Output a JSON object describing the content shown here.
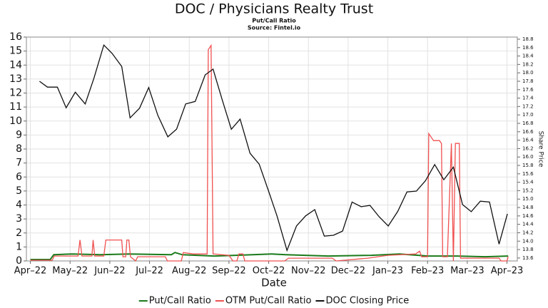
{
  "chart_data": {
    "type": "line",
    "title": "DOC / Physicians Realty Trust",
    "subtitle": "Put/Call Ratio",
    "source": "Source: Fintel.io",
    "xlabel": "Date",
    "y2label": "Share Price",
    "grid": true,
    "legend": "bottom",
    "xlim": [
      -0.1,
      12.26
    ],
    "xticks": [
      {
        "value": 0,
        "label": "Apr–22"
      },
      {
        "value": 1,
        "label": "May–22"
      },
      {
        "value": 2,
        "label": "Jun–22"
      },
      {
        "value": 3,
        "label": "Jul–22"
      },
      {
        "value": 4,
        "label": "Aug–22"
      },
      {
        "value": 5,
        "label": "Sep–22"
      },
      {
        "value": 6,
        "label": "Oct–22"
      },
      {
        "value": 7,
        "label": "Nov–22"
      },
      {
        "value": 8,
        "label": "Dec–22"
      },
      {
        "value": 9,
        "label": "Jan–23"
      },
      {
        "value": 10,
        "label": "Feb–23"
      },
      {
        "value": 11,
        "label": "Mar–23"
      },
      {
        "value": 12,
        "label": "Apr–23"
      }
    ],
    "ylim": [
      0,
      16
    ],
    "yticks": [
      0,
      1,
      2,
      3,
      4,
      5,
      6,
      7,
      8,
      9,
      10,
      11,
      12,
      13,
      14,
      15,
      16
    ],
    "y2lim": [
      13.53,
      18.85
    ],
    "y2ticks": [
      13.6,
      13.8,
      {
        "value": 14,
        "label": "14.0"
      },
      14.2,
      14.4,
      14.6,
      14.8,
      {
        "value": 15,
        "label": "15.0"
      },
      15.2,
      15.4,
      15.6,
      15.8,
      {
        "value": 16,
        "label": "16.0"
      },
      16.2,
      16.4,
      16.6,
      16.8,
      {
        "value": 17,
        "label": "17.0"
      },
      17.2,
      17.4,
      17.6,
      17.8,
      {
        "value": 18,
        "label": "18.0"
      },
      18.2,
      18.4,
      18.6,
      18.8
    ],
    "series": [
      {
        "name": "Put/Call Ratio",
        "color": "#1a7a1a",
        "axis": "y",
        "x": [
          0,
          0.5,
          0.59,
          1.04,
          1.76,
          2.48,
          3.55,
          3.64,
          3.82,
          4.63,
          5.17,
          6.07,
          6.43,
          7.5,
          8.58,
          9.3,
          10.02,
          10.74,
          11.45,
          12.03
        ],
        "values": [
          0.1,
          0.1,
          0.45,
          0.5,
          0.45,
          0.5,
          0.45,
          0.6,
          0.45,
          0.35,
          0.4,
          0.5,
          0.45,
          0.35,
          0.4,
          0.5,
          0.35,
          0.35,
          0.3,
          0.35
        ]
      },
      {
        "name": "OTM Put/Call Ratio",
        "color": "#f05050",
        "axis": "y",
        "x": [
          0,
          0.55,
          0.6,
          1.2,
          1.25,
          1.3,
          1.55,
          1.58,
          1.62,
          1.85,
          1.9,
          2.3,
          2.33,
          2.4,
          2.43,
          2.48,
          2.52,
          2.65,
          2.7,
          3.4,
          3.45,
          3.8,
          3.85,
          4.1,
          4.45,
          4.48,
          4.55,
          4.6,
          5.0,
          5.1,
          5.2,
          5.25,
          5.35,
          5.4,
          6.4,
          6.5,
          7.6,
          7.7,
          8.5,
          9.0,
          9.7,
          9.8,
          9.85,
          10.0,
          10.03,
          10.15,
          10.3,
          10.35,
          10.38,
          10.5,
          10.6,
          10.65,
          10.7,
          10.8,
          10.83,
          11.8,
          11.85,
          12.0,
          12.03
        ],
        "values": [
          0.05,
          0.05,
          0.35,
          0.35,
          1.5,
          0.35,
          0.35,
          1.5,
          0.35,
          0.35,
          1.5,
          1.5,
          0.3,
          0.3,
          1.5,
          1.5,
          0.3,
          0,
          0.3,
          0.3,
          0,
          0,
          0.6,
          0.5,
          0.5,
          15.1,
          15.4,
          0.5,
          0.4,
          0,
          0,
          0.5,
          0.5,
          0,
          0,
          0.2,
          0.2,
          0,
          0.2,
          0.4,
          0.5,
          0.7,
          0.3,
          0.3,
          9.1,
          8.6,
          8.6,
          8.4,
          0.3,
          0.3,
          8.4,
          0,
          8.4,
          8.4,
          0.2,
          0.2,
          0,
          0,
          0.3
        ]
      },
      {
        "name": "DOC Closing Price",
        "color": "#111111",
        "axis": "y2",
        "x": [
          0.23,
          0.43,
          0.68,
          0.9,
          1.13,
          1.38,
          1.6,
          1.85,
          2.06,
          2.3,
          2.51,
          2.75,
          2.98,
          3.21,
          3.46,
          3.68,
          3.91,
          4.15,
          4.4,
          4.6,
          4.83,
          5.06,
          5.28,
          5.53,
          5.76,
          5.98,
          6.21,
          6.46,
          6.7,
          6.93,
          7.16,
          7.4,
          7.63,
          7.86,
          8.1,
          8.33,
          8.55,
          8.78,
          9.01,
          9.25,
          9.48,
          9.72,
          9.95,
          10.18,
          10.41,
          10.65,
          10.88,
          11.1,
          11.33,
          11.56,
          11.8,
          12.01
        ],
        "values": [
          17.8,
          17.66,
          17.66,
          17.17,
          17.54,
          17.26,
          17.87,
          18.66,
          18.46,
          18.15,
          16.93,
          17.16,
          17.65,
          16.99,
          16.48,
          16.66,
          17.26,
          17.32,
          17.95,
          18.09,
          17.36,
          16.66,
          16.9,
          16.09,
          15.83,
          15.24,
          14.6,
          13.78,
          14.36,
          14.6,
          14.75,
          14.12,
          14.14,
          14.24,
          14.93,
          14.82,
          14.85,
          14.58,
          14.36,
          14.71,
          15.17,
          15.19,
          15.44,
          15.82,
          15.46,
          15.76,
          14.87,
          14.7,
          14.95,
          14.93,
          13.93,
          14.65
        ]
      }
    ]
  }
}
